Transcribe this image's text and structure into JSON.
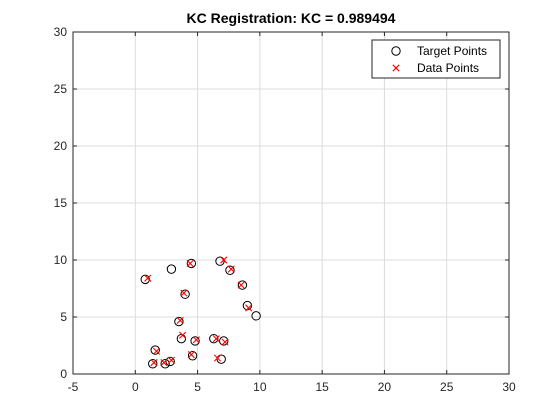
{
  "chart_data": {
    "type": "scatter",
    "title": "KC Registration: KC = 0.989494",
    "xlabel": "",
    "ylabel": "",
    "xlim": [
      -5,
      30
    ],
    "ylim": [
      0,
      30
    ],
    "xticks": [
      -5,
      0,
      5,
      10,
      15,
      20,
      25,
      30
    ],
    "yticks": [
      0,
      5,
      10,
      15,
      20,
      25,
      30
    ],
    "grid": true,
    "legend_position": "top-right",
    "series": [
      {
        "name": "Target Points",
        "marker": "circle",
        "color": "#000000",
        "points": [
          [
            0.8,
            8.3
          ],
          [
            2.9,
            9.2
          ],
          [
            4.5,
            9.7
          ],
          [
            6.8,
            9.9
          ],
          [
            7.6,
            9.1
          ],
          [
            8.6,
            7.8
          ],
          [
            9.0,
            6.0
          ],
          [
            9.7,
            5.1
          ],
          [
            4.0,
            7.0
          ],
          [
            3.5,
            4.6
          ],
          [
            3.7,
            3.1
          ],
          [
            4.8,
            2.9
          ],
          [
            6.3,
            3.1
          ],
          [
            7.1,
            2.9
          ],
          [
            1.6,
            2.1
          ],
          [
            4.6,
            1.6
          ],
          [
            6.9,
            1.3
          ],
          [
            1.4,
            0.9
          ],
          [
            2.4,
            0.9
          ],
          [
            2.8,
            1.1
          ]
        ]
      },
      {
        "name": "Data Points",
        "marker": "x",
        "color": "#ff0000",
        "points": [
          [
            1.0,
            8.4
          ],
          [
            4.4,
            9.7
          ],
          [
            7.1,
            10.0
          ],
          [
            7.7,
            9.2
          ],
          [
            8.5,
            7.8
          ],
          [
            9.1,
            5.8
          ],
          [
            3.9,
            7.1
          ],
          [
            3.6,
            4.7
          ],
          [
            3.8,
            3.4
          ],
          [
            4.9,
            3.0
          ],
          [
            6.5,
            3.1
          ],
          [
            7.2,
            2.8
          ],
          [
            1.7,
            2.0
          ],
          [
            4.5,
            1.7
          ],
          [
            6.6,
            1.4
          ],
          [
            1.5,
            1.0
          ],
          [
            2.3,
            1.0
          ],
          [
            2.9,
            1.2
          ]
        ]
      }
    ]
  }
}
